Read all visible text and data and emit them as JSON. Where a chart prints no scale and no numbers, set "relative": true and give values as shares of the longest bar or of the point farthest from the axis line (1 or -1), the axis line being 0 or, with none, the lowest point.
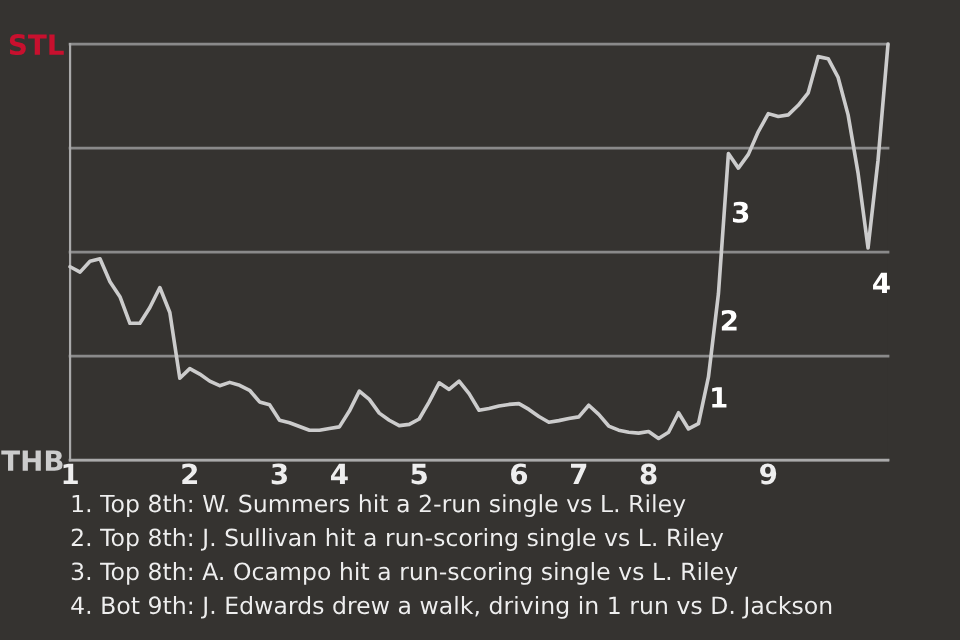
{
  "chart_data": {
    "type": "line",
    "relative": true,
    "categories": [
      "1",
      null,
      null,
      null,
      null,
      null,
      null,
      null,
      null,
      null,
      null,
      null,
      "2",
      null,
      null,
      null,
      null,
      null,
      null,
      null,
      null,
      "3",
      null,
      null,
      null,
      null,
      null,
      "4",
      null,
      null,
      null,
      null,
      null,
      null,
      null,
      "5",
      null,
      null,
      null,
      null,
      null,
      null,
      null,
      null,
      null,
      "6",
      null,
      null,
      null,
      null,
      null,
      "7",
      null,
      null,
      null,
      null,
      null,
      null,
      "8",
      null,
      null,
      null,
      null,
      null,
      null,
      null,
      null,
      null,
      null,
      null,
      "9",
      null,
      null,
      null,
      null,
      null,
      null,
      null,
      null,
      null,
      null,
      null,
      null
    ],
    "series": [
      {
        "color": "#cccccc",
        "values": [
          0.465,
          0.452,
          0.478,
          0.484,
          0.429,
          0.393,
          0.329,
          0.329,
          0.367,
          0.415,
          0.355,
          0.197,
          0.22,
          0.207,
          0.19,
          0.179,
          0.187,
          0.18,
          0.168,
          0.14,
          0.133,
          0.096,
          0.09,
          0.081,
          0.072,
          0.072,
          0.076,
          0.08,
          0.118,
          0.166,
          0.146,
          0.113,
          0.096,
          0.083,
          0.086,
          0.099,
          0.14,
          0.186,
          0.17,
          0.19,
          0.16,
          0.12,
          0.124,
          0.13,
          0.134,
          0.136,
          0.122,
          0.105,
          0.091,
          0.095,
          0.1,
          0.104,
          0.132,
          0.11,
          0.082,
          0.072,
          0.067,
          0.065,
          0.069,
          0.052,
          0.067,
          0.114,
          0.075,
          0.088,
          0.2,
          0.4,
          0.737,
          0.702,
          0.735,
          0.79,
          0.833,
          0.826,
          0.83,
          0.853,
          0.883,
          0.97,
          0.965,
          0.92,
          0.83,
          0.69,
          0.51,
          0.721,
          1.0
        ],
        "line_style": "solid"
      }
    ],
    "ref_lines": [
      {
        "axis": "y",
        "value": 0,
        "label": "THB",
        "color": "#aaaaaa"
      },
      {
        "axis": "y",
        "value": 0.25,
        "label": null,
        "color": "#8a8a8a"
      },
      {
        "axis": "y",
        "value": 0.5,
        "label": null,
        "color": "#8a8a8a"
      },
      {
        "axis": "y",
        "value": 0.75,
        "label": null,
        "color": "#8a8a8a"
      },
      {
        "axis": "y",
        "value": 1,
        "label": "STL",
        "color": "#8a8a8a"
      }
    ],
    "annotations": [
      "1",
      "2",
      "3",
      "4",
      "1. Top 8th: W. Summers hit a 2-run single vs L. Riley",
      "2. Top 8th: J. Sullivan hit a run-scoring single vs L. Riley",
      "3. Top 8th: A. Ocampo hit a run-scoring single vs L. Riley",
      "4. Bot 9th: J. Edwards drew a walk, driving in 1 run vs D. Jackson"
    ]
  }
}
